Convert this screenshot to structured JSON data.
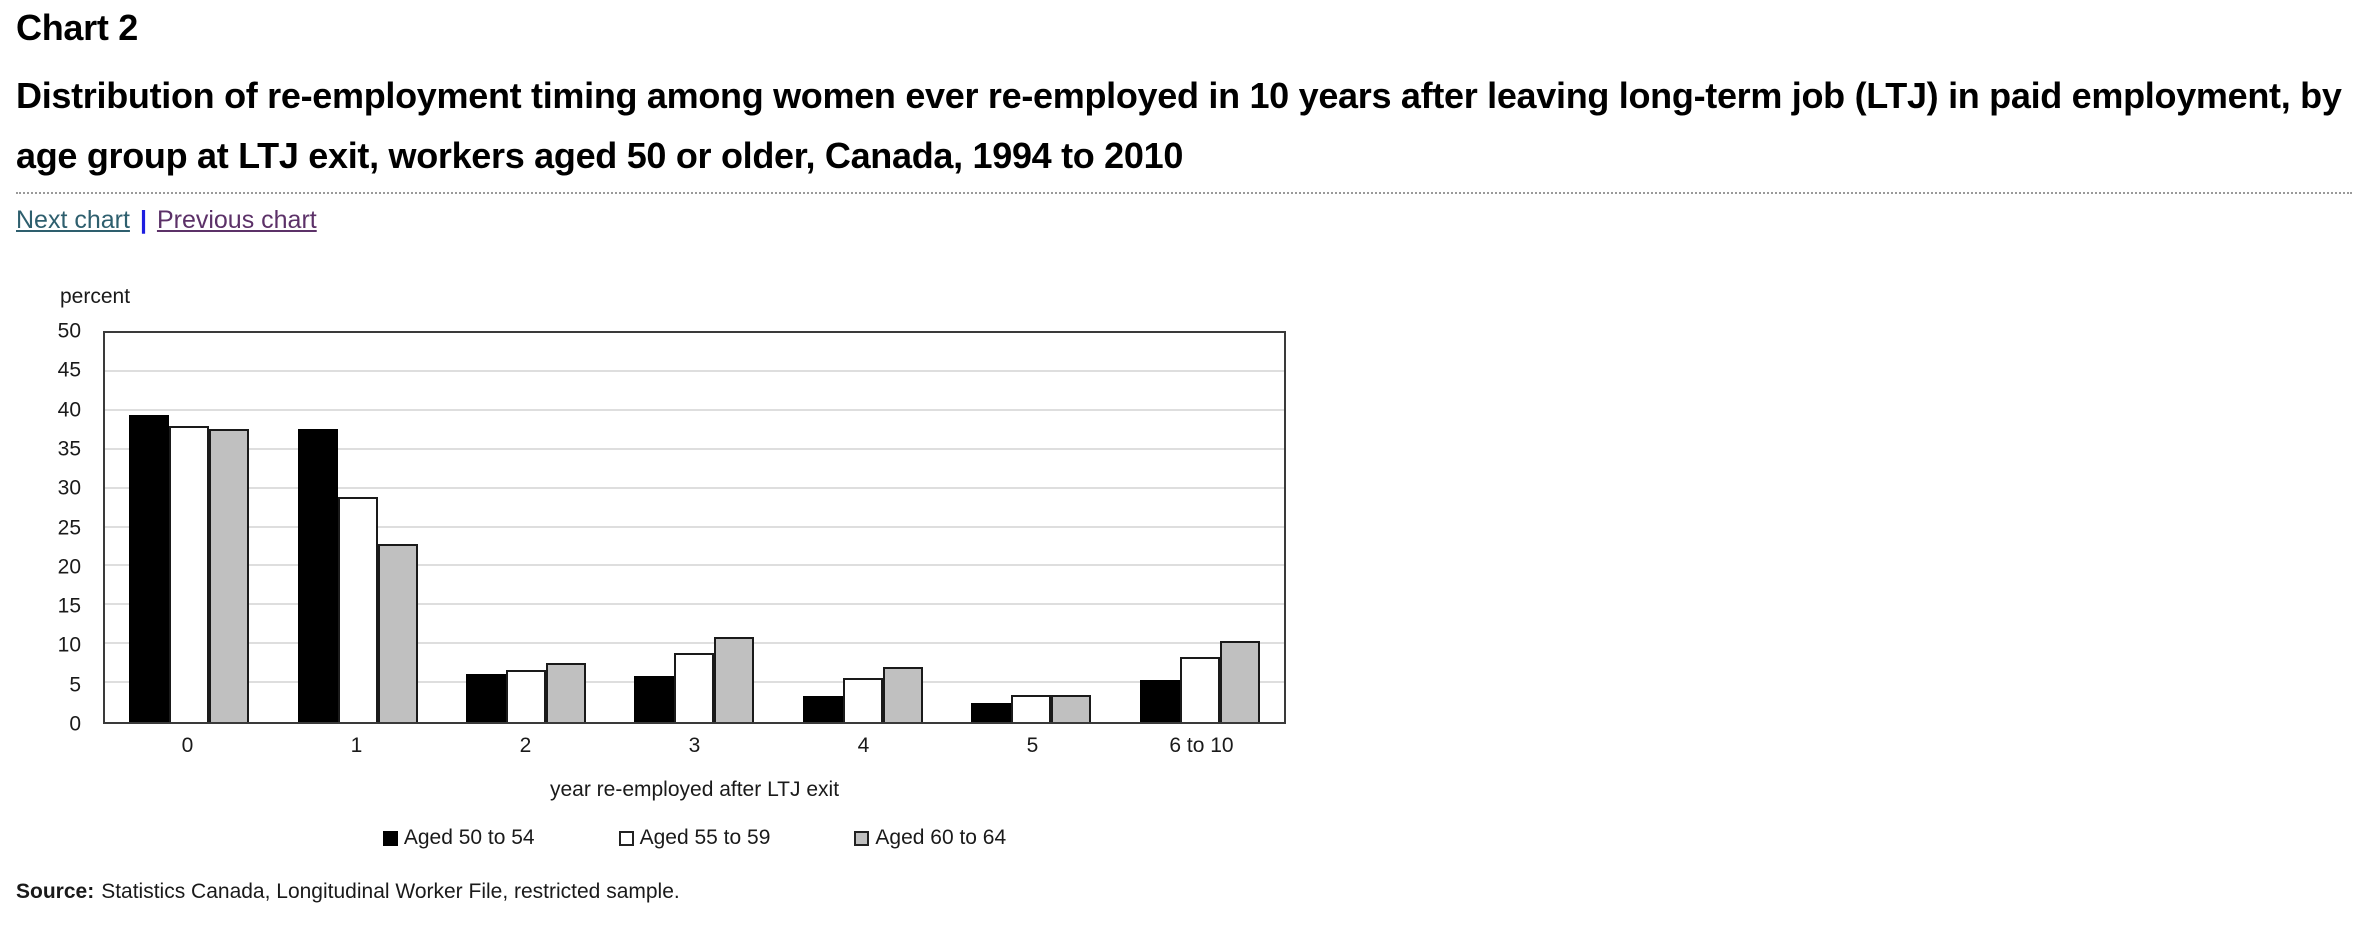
{
  "header": {
    "chart_label": "Chart 2",
    "title": "Distribution of re-employment timing among women ever re-employed in 10 years after leaving long-term job (LTJ) in paid employment, by age group at LTJ exit, workers aged 50 or older, Canada, 1994 to 2010"
  },
  "nav": {
    "next_label": "Next chart",
    "separator": "|",
    "previous_label": "Previous chart"
  },
  "source": {
    "label": "Source:",
    "text": "Statistics Canada, Longitudinal Worker File, restricted sample."
  },
  "colors": {
    "link_next": "#2e5f6e",
    "link_separator": "#1e1ee0",
    "link_previous": "#5c3168",
    "plot_border": "#3a3a3a",
    "gridline": "#dedede",
    "bar_border": "#1a1a1a",
    "series_black": "#000000",
    "series_white": "#ffffff",
    "series_gray": "#c0c0c0"
  },
  "chart_data": {
    "type": "bar",
    "title": "Distribution of re-employment timing among women ever re-employed in 10 years after leaving long-term job (LTJ) in paid employment, by age group at LTJ exit, workers aged 50 or older, Canada, 1994 to 2010",
    "unit_label": "percent",
    "xlabel": "year re-employed after LTJ exit",
    "ylabel": "percent",
    "ylim": [
      0,
      50
    ],
    "ytick_step": 5,
    "yticks": [
      0,
      5,
      10,
      15,
      20,
      25,
      30,
      35,
      40,
      45,
      50
    ],
    "grid": true,
    "legend_position": "bottom",
    "categories": [
      "0",
      "1",
      "2",
      "3",
      "4",
      "5",
      "6 to 10"
    ],
    "series": [
      {
        "name": "Aged 50 to 54",
        "color": "#000000",
        "values": [
          39.5,
          37.6,
          6.2,
          5.9,
          3.4,
          2.4,
          5.4
        ]
      },
      {
        "name": "Aged 55 to 59",
        "color": "#ffffff",
        "values": [
          38.1,
          28.9,
          6.7,
          8.9,
          5.6,
          3.5,
          8.4
        ]
      },
      {
        "name": "Aged 60 to 64",
        "color": "#c0c0c0",
        "values": [
          37.6,
          22.9,
          7.6,
          10.9,
          7.1,
          3.5,
          10.4
        ]
      }
    ]
  }
}
